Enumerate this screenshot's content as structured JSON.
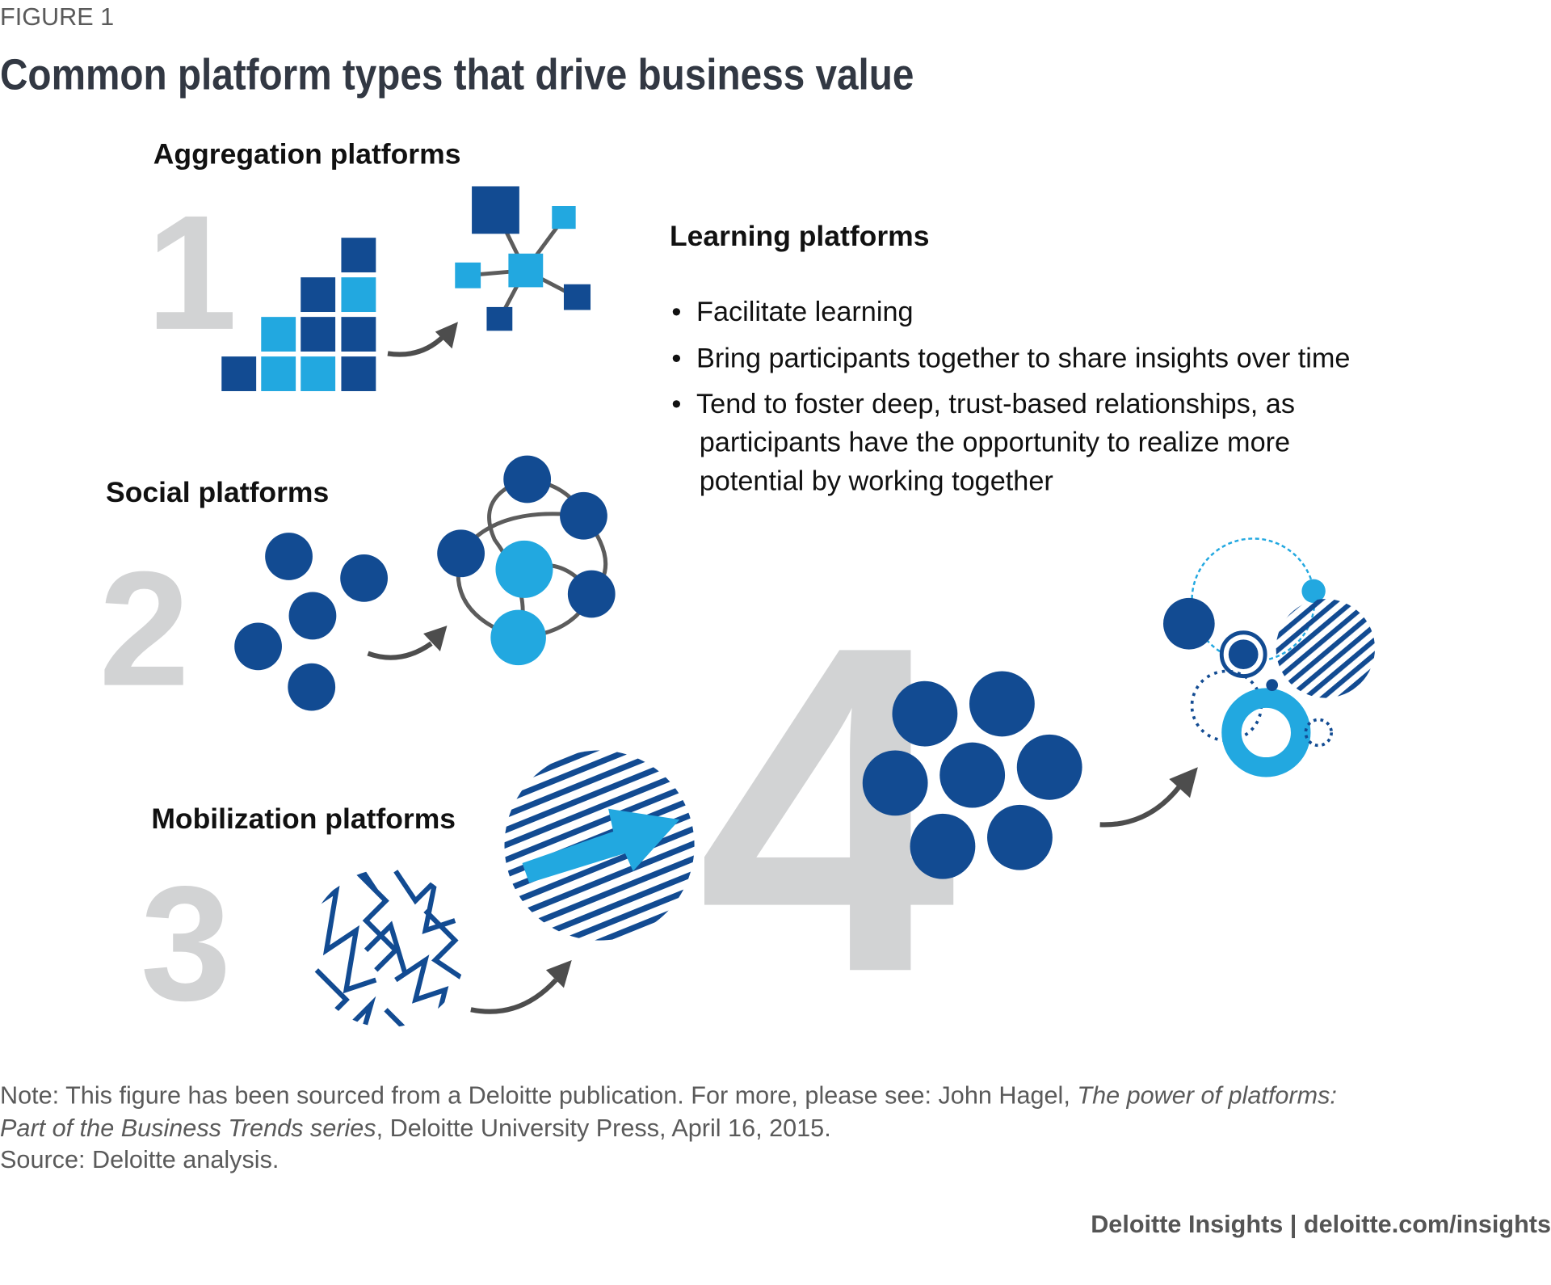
{
  "figure_label": "FIGURE 1",
  "title": "Common platform types that drive business value",
  "colors": {
    "dark_blue": "#124b92",
    "light_blue": "#22a8e0",
    "numeral_gray": "#d2d3d4",
    "arrow_gray": "#4d4d4d"
  },
  "platforms": [
    {
      "number": "1",
      "name": "Aggregation platforms"
    },
    {
      "number": "2",
      "name": "Social platforms"
    },
    {
      "number": "3",
      "name": "Mobilization platforms"
    },
    {
      "number": "4",
      "name": "Learning platforms",
      "bullets": [
        "Facilitate learning",
        "Bring participants together to share insights over time",
        "Tend to foster deep, trust-based relationships, as",
        "participants have the opportunity to realize more",
        "potential by working together"
      ]
    }
  ],
  "note": {
    "prefix": "Note: This figure has been sourced from a Deloitte publication. For more, please see: John Hagel, ",
    "italic1": "The power of platforms:",
    "italic2": "Part of the Business Trends series",
    "suffix": ", Deloitte University Press, April 16, 2015.",
    "source": "Source: Deloitte analysis."
  },
  "footer": "Deloitte Insights | deloitte.com/insights"
}
